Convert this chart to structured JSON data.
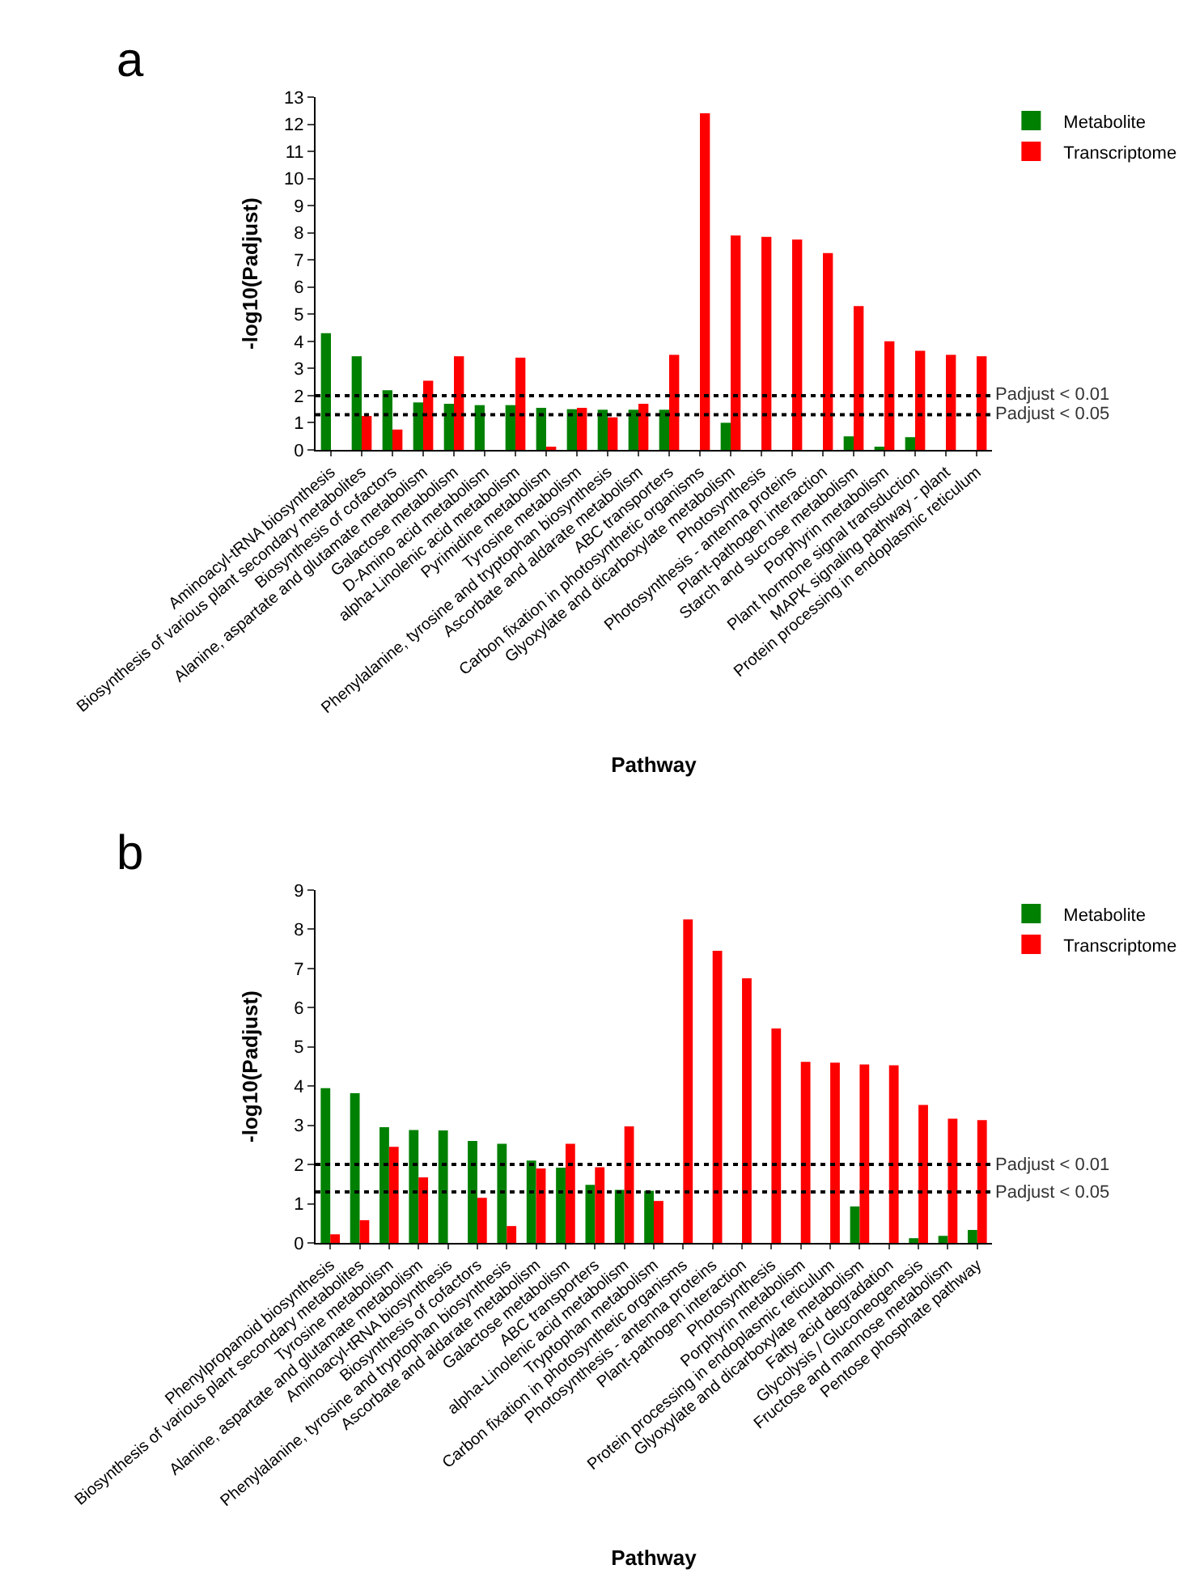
{
  "chart_data": [
    {
      "type": "bar",
      "title": "a",
      "xlabel": "Pathway",
      "ylabel": "-log10(Padjust)",
      "categories": [
        "Aminoacyl-tRNA biosynthesis",
        "Biosynthesis of various plant secondary metabolites",
        "Biosynthesis of cofactors",
        "Alanine, aspartate and glutamate metabolism",
        "Galactose metabolism",
        "D-Amino acid metabolism",
        "alpha-Linolenic acid metabolism",
        "Pyrimidine metabolism",
        "Tyrosine metabolism",
        "Phenylalanine, tyrosine and tryptophan biosynthesis",
        "Ascorbate and aldarate metabolism",
        "ABC transporters",
        "Carbon fixation in photosynthetic organisms",
        "Glyoxylate and dicarboxylate metabolism",
        "Photosynthesis",
        "Photosynthesis - antenna proteins",
        "Plant-pathogen interaction",
        "Starch and sucrose metabolism",
        "Porphyrin metabolism",
        "Plant hormone signal transduction",
        "MAPK signaling pathway - plant",
        "Protein processing in endoplasmic reticulum"
      ],
      "series": [
        {
          "name": "Metabolite",
          "color": "#008000",
          "values": [
            4.3,
            3.45,
            2.2,
            1.75,
            1.7,
            1.65,
            1.65,
            1.55,
            1.5,
            1.48,
            1.48,
            1.48,
            null,
            1.0,
            null,
            null,
            null,
            0.5,
            0.07,
            0.47,
            null,
            null
          ]
        },
        {
          "name": "Transcriptome",
          "color": "#ff0000",
          "values": [
            null,
            1.25,
            0.75,
            2.55,
            3.45,
            null,
            3.4,
            0.12,
            1.55,
            1.2,
            1.7,
            3.5,
            12.4,
            7.9,
            7.85,
            7.75,
            7.25,
            5.3,
            4.0,
            3.65,
            3.5,
            3.45
          ]
        }
      ],
      "ylim": [
        0,
        13
      ],
      "yticks": [
        0,
        1,
        2,
        3,
        4,
        5,
        6,
        7,
        8,
        9,
        10,
        11,
        12,
        13
      ],
      "grid": false,
      "legend": "top right",
      "ref_lines": [
        {
          "axis": "y",
          "value": 2,
          "label": "Padjust < 0.01",
          "color": "#000000",
          "line_style": "dotted"
        },
        {
          "axis": "y",
          "value": 1.3,
          "label": "Padjust < 0.05",
          "color": "#000000",
          "line_style": "dotted"
        }
      ]
    },
    {
      "type": "bar",
      "title": "b",
      "xlabel": "Pathway",
      "ylabel": "-log10(Padjust)",
      "categories": [
        "Phenylpropanoid biosynthesis",
        "Biosynthesis of various plant secondary metabolites",
        "Tyrosine metabolism",
        "Alanine, aspartate and glutamate metabolism",
        "Aminoacyl-tRNA biosynthesis",
        "Biosynthesis of cofactors",
        "Phenylalanine, tyrosine and tryptophan biosynthesis",
        "Ascorbate and aldarate metabolism",
        "Galactose metabolism",
        "ABC transporters",
        "alpha-Linolenic acid metabolism",
        "Tryptophan metabolism",
        "Carbon fixation in photosynthetic organisms",
        "Photosynthesis - antenna proteins",
        "Plant-pathogen interaction",
        "Photosynthesis",
        "Porphyrin metabolism",
        "Protein processing in endoplasmic reticulum",
        "Glyoxylate and dicarboxylate metabolism",
        "Fatty acid degradation",
        "Glycolysis / Gluconeogenesis",
        "Fructose and mannose metabolism",
        "Pentose phosphate pathway"
      ],
      "series": [
        {
          "name": "Metabolite",
          "color": "#008000",
          "values": [
            3.95,
            3.82,
            2.95,
            2.88,
            2.87,
            2.6,
            2.53,
            2.1,
            1.92,
            1.48,
            1.35,
            1.33,
            null,
            null,
            null,
            null,
            null,
            null,
            0.93,
            null,
            0.12,
            0.18,
            0.33
          ]
        },
        {
          "name": "Transcriptome",
          "color": "#ff0000",
          "values": [
            0.22,
            0.58,
            2.45,
            1.67,
            null,
            1.15,
            0.43,
            1.9,
            2.53,
            1.93,
            2.97,
            1.07,
            8.25,
            7.45,
            6.75,
            5.47,
            4.62,
            4.6,
            4.55,
            4.53,
            3.52,
            3.17,
            3.13
          ]
        }
      ],
      "ylim": [
        0,
        9
      ],
      "yticks": [
        0,
        1,
        2,
        3,
        4,
        5,
        6,
        7,
        8,
        9
      ],
      "grid": false,
      "legend": "top right",
      "ref_lines": [
        {
          "axis": "y",
          "value": 2,
          "label": "Padjust < 0.01",
          "color": "#000000",
          "line_style": "dotted"
        },
        {
          "axis": "y",
          "value": 1.3,
          "label": "Padjust < 0.05",
          "color": "#000000",
          "line_style": "dotted"
        }
      ]
    }
  ]
}
